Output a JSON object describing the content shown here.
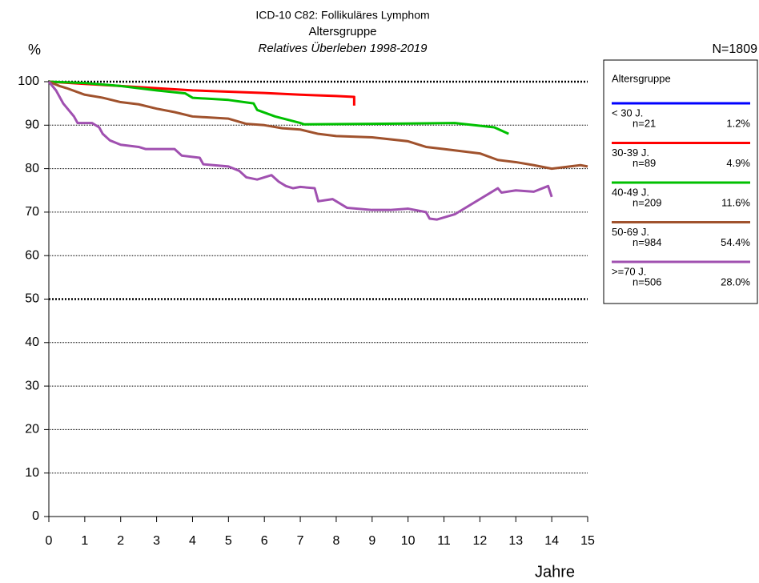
{
  "chart_data": {
    "type": "line",
    "title": "ICD-10 C82: Follikuläres Lymphom",
    "subtitle": "Altersgruppe",
    "subtitle2": "Relatives Überleben 1998-2019",
    "y_label": "%",
    "x_label": "Jahre",
    "total": "N=1809",
    "legend_title": "Altersgruppe",
    "xlim": [
      0,
      15
    ],
    "xticks": [
      0,
      1,
      2,
      3,
      4,
      5,
      6,
      7,
      8,
      9,
      10,
      11,
      12,
      13,
      14,
      15
    ],
    "ylim": [
      0,
      100
    ],
    "yticks": [
      0,
      10,
      20,
      30,
      40,
      50,
      60,
      70,
      80,
      90,
      100
    ],
    "grid": true,
    "bold_grid": [
      50,
      100
    ],
    "legend": "right",
    "series": [
      {
        "name": "< 30 J.",
        "n": "n=21",
        "share": "1.2%",
        "color": "#0000ff",
        "x": [],
        "values": []
      },
      {
        "name": "30-39 J.",
        "n": "n=89",
        "share": "4.9%",
        "color": "#ff0000",
        "x": [
          0,
          1,
          2,
          3,
          4,
          5,
          6,
          7,
          8,
          8.5,
          8.5
        ],
        "values": [
          100,
          99.5,
          99,
          98.5,
          98,
          97.7,
          97.4,
          97,
          96.7,
          96.5,
          94.5
        ]
      },
      {
        "name": "40-49 J.",
        "n": "n=209",
        "share": "11.6%",
        "color": "#00c000",
        "x": [
          0,
          1,
          2,
          3,
          3.8,
          4,
          5,
          5.7,
          5.8,
          6.3,
          7,
          7.1,
          9,
          11.3,
          12.4,
          12.8
        ],
        "values": [
          100,
          99.7,
          99,
          98,
          97.3,
          96.3,
          95.8,
          95,
          93.5,
          92,
          90.5,
          90.2,
          90.3,
          90.5,
          89.5,
          88
        ]
      },
      {
        "name": "50-69 J.",
        "n": "n=984",
        "share": "54.4%",
        "color": "#a0522d",
        "x": [
          0,
          0.3,
          0.5,
          1,
          1.5,
          2,
          2.5,
          3,
          3.5,
          4,
          5,
          5.5,
          6,
          6.5,
          7,
          7.5,
          8,
          9,
          10,
          10.5,
          11,
          12,
          12.5,
          13,
          13.5,
          14,
          14.5,
          14.8,
          15
        ],
        "values": [
          100,
          99,
          98.5,
          97,
          96.3,
          95.3,
          94.8,
          93.8,
          93,
          92,
          91.5,
          90.3,
          90,
          89.3,
          89,
          88,
          87.5,
          87.2,
          86.3,
          85,
          84.5,
          83.5,
          82,
          81.5,
          80.8,
          80,
          80.5,
          80.8,
          80.5
        ]
      },
      {
        "name": ">=70 J.",
        "n": "n=506",
        "share": "28.0%",
        "color": "#a050b0",
        "x": [
          0,
          0.2,
          0.4,
          0.7,
          0.8,
          1.2,
          1.4,
          1.5,
          1.7,
          2,
          2.5,
          2.7,
          3.5,
          3.7,
          4.2,
          4.3,
          5,
          5.3,
          5.5,
          5.8,
          6,
          6.2,
          6.4,
          6.6,
          6.8,
          7,
          7.4,
          7.5,
          7.9,
          8,
          8.3,
          9,
          9.5,
          10,
          10.5,
          10.6,
          10.8,
          11.3,
          12.5,
          12.6,
          13,
          13.5,
          13.9,
          14
        ],
        "values": [
          100,
          98,
          95,
          92,
          90.5,
          90.5,
          89.5,
          88,
          86.5,
          85.5,
          85,
          84.5,
          84.5,
          83,
          82.5,
          81,
          80.5,
          79.5,
          78,
          77.5,
          78,
          78.5,
          77,
          76,
          75.5,
          75.8,
          75.5,
          72.5,
          73,
          72.5,
          71,
          70.5,
          70.5,
          70.8,
          70,
          68.5,
          68.3,
          69.5,
          75.5,
          74.5,
          75,
          74.7,
          76,
          73.5
        ]
      }
    ]
  }
}
